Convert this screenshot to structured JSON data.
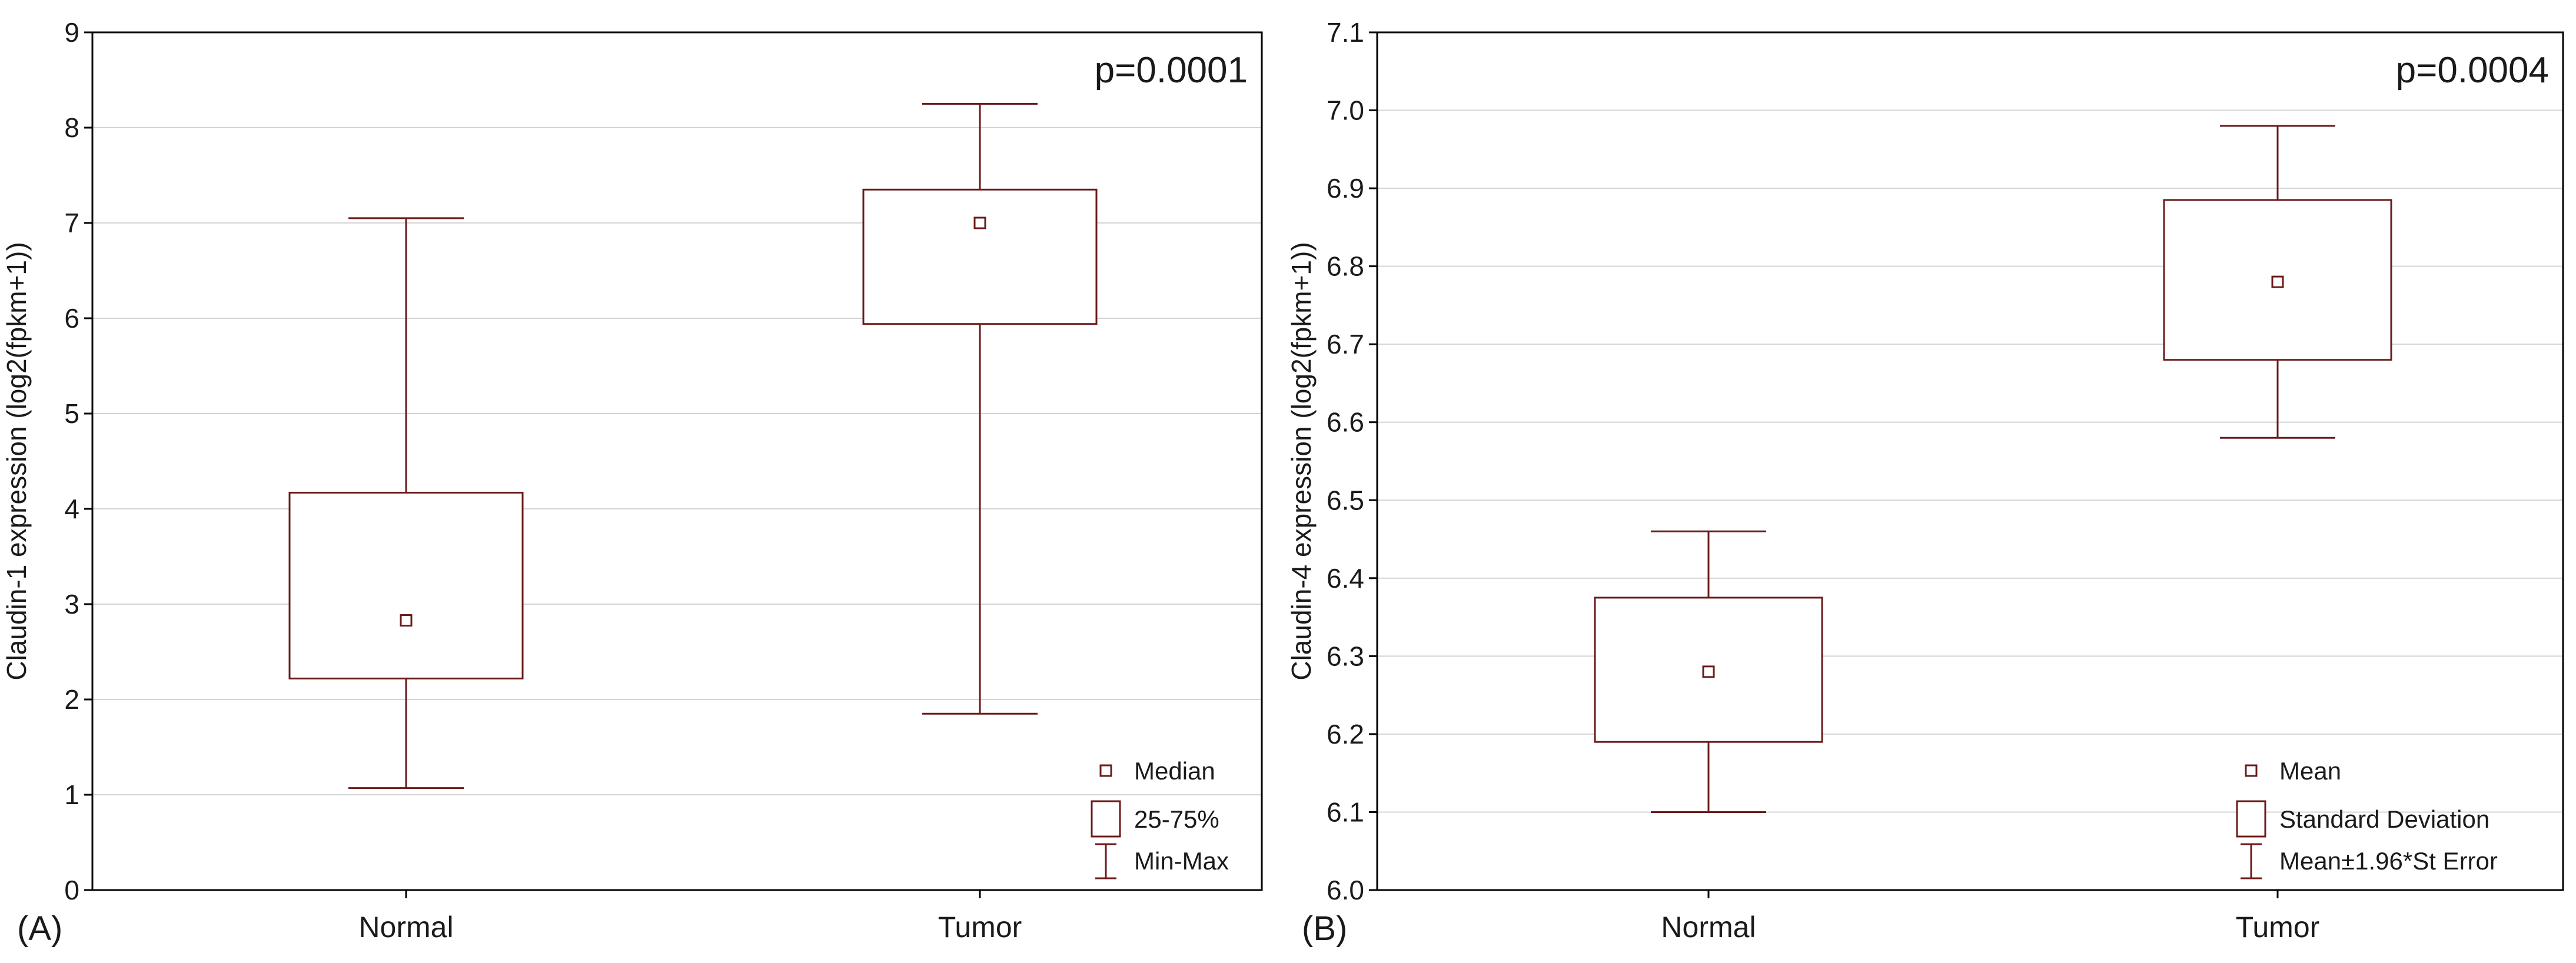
{
  "chart_data": [
    {
      "type": "box",
      "panel_label": "(A)",
      "title": "",
      "xlabel": "",
      "ylabel": "Claudin-1 expression (log2(fpkm+1))",
      "ylim": [
        0,
        9
      ],
      "yticks": [
        0,
        1,
        2,
        3,
        4,
        5,
        6,
        7,
        8,
        9
      ],
      "ytick_labels": [
        "0",
        "1",
        "2",
        "3",
        "4",
        "5",
        "6",
        "7",
        "8",
        "9"
      ],
      "grid": true,
      "categories": [
        "Normal",
        "Tumor"
      ],
      "series": [
        {
          "name": "Normal",
          "center": 2.83,
          "box_low": 2.22,
          "box_high": 4.17,
          "whisker_low": 1.07,
          "whisker_high": 7.05
        },
        {
          "name": "Tumor",
          "center": 7.0,
          "box_low": 5.94,
          "box_high": 7.35,
          "whisker_low": 1.85,
          "whisker_high": 8.25
        }
      ],
      "annotation": "p=0.0001",
      "legend_position": "bottom-right",
      "legend": [
        "Median",
        "25-75%",
        "Min-Max"
      ],
      "color": "#6b1a1a"
    },
    {
      "type": "box",
      "panel_label": "(B)",
      "title": "",
      "xlabel": "",
      "ylabel": "Claudin-4 expression (log2(fpkm+1))",
      "ylim": [
        6.0,
        7.1
      ],
      "yticks": [
        6.0,
        6.1,
        6.2,
        6.3,
        6.4,
        6.5,
        6.6,
        6.7,
        6.8,
        6.9,
        7.0,
        7.1
      ],
      "ytick_labels": [
        "6.0",
        "6.1",
        "6.2",
        "6.3",
        "6.4",
        "6.5",
        "6.6",
        "6.7",
        "6.8",
        "6.9",
        "7.0",
        "7.1"
      ],
      "grid": true,
      "categories": [
        "Normal",
        "Tumor"
      ],
      "series": [
        {
          "name": "Normal",
          "center": 6.28,
          "box_low": 6.19,
          "box_high": 6.375,
          "whisker_low": 6.1,
          "whisker_high": 6.46
        },
        {
          "name": "Tumor",
          "center": 6.78,
          "box_low": 6.68,
          "box_high": 6.885,
          "whisker_low": 6.58,
          "whisker_high": 6.98
        }
      ],
      "annotation": "p=0.0004",
      "legend_position": "bottom-right",
      "legend": [
        "Mean",
        "Standard Deviation",
        "Mean±1.96*St Error"
      ],
      "color": "#6b1a1a"
    }
  ]
}
